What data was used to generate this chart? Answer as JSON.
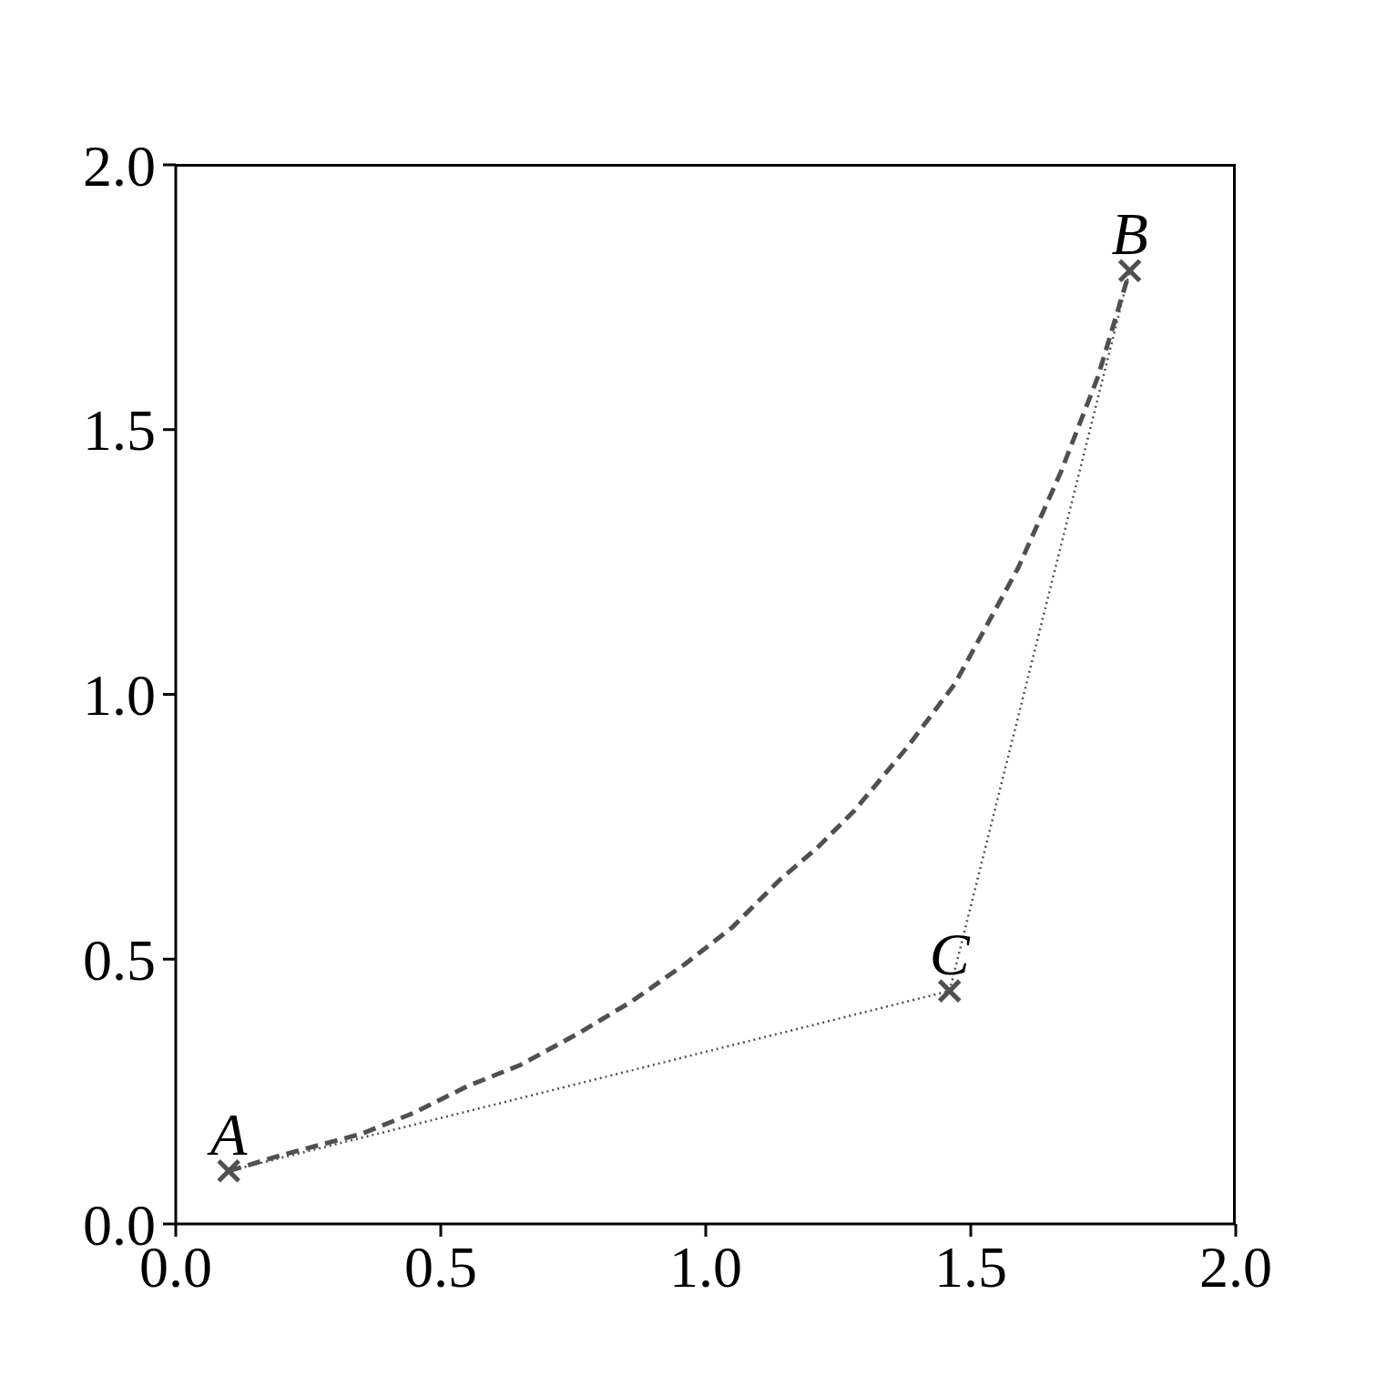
{
  "chart_data": {
    "type": "line",
    "xlim": [
      0,
      2
    ],
    "ylim": [
      0,
      2
    ],
    "xticks": [
      {
        "value": 0,
        "label": "0.0"
      },
      {
        "value": 0.5,
        "label": "0.5"
      },
      {
        "value": 1,
        "label": "1.0"
      },
      {
        "value": 1.5,
        "label": "1.5"
      },
      {
        "value": 2,
        "label": "2.0"
      }
    ],
    "yticks": [
      {
        "value": 0,
        "label": "0.0"
      },
      {
        "value": 0.5,
        "label": "0.5"
      },
      {
        "value": 1,
        "label": "1.0"
      },
      {
        "value": 1.5,
        "label": "1.5"
      },
      {
        "value": 2,
        "label": "2.0"
      }
    ],
    "grid": false,
    "legend": false,
    "series": [
      {
        "color": "#505050",
        "line_style": "dashed",
        "marker": "none",
        "x": [
          0.1,
          0.2,
          0.35,
          0.45,
          0.55,
          0.65,
          0.76,
          0.86,
          0.96,
          1.05,
          1.14,
          1.21,
          1.28,
          1.38,
          1.47,
          1.53,
          1.59,
          1.63,
          1.67,
          1.705,
          1.74,
          1.77,
          1.8
        ],
        "values": [
          0.1,
          0.13,
          0.17,
          0.21,
          0.26,
          0.3,
          0.36,
          0.42,
          0.49,
          0.56,
          0.65,
          0.71,
          0.78,
          0.9,
          1.02,
          1.13,
          1.24,
          1.33,
          1.42,
          1.51,
          1.6,
          1.7,
          1.8
        ]
      },
      {
        "color": "#505050",
        "line_style": "dotted",
        "marker": "none",
        "x": [
          0.1,
          1.46,
          1.8
        ],
        "values": [
          0.1,
          0.44,
          1.8
        ]
      },
      {
        "type": "scatter",
        "color": "#505050",
        "marker": "cross",
        "x": [
          0.1,
          1.8,
          1.46
        ],
        "values": [
          0.1,
          1.8,
          0.44
        ]
      }
    ],
    "annotations": [
      {
        "text": "A",
        "x": 0.1,
        "y": 0.1
      },
      {
        "text": "B",
        "x": 1.8,
        "y": 1.8
      },
      {
        "text": "C",
        "x": 1.46,
        "y": 0.44
      }
    ]
  }
}
